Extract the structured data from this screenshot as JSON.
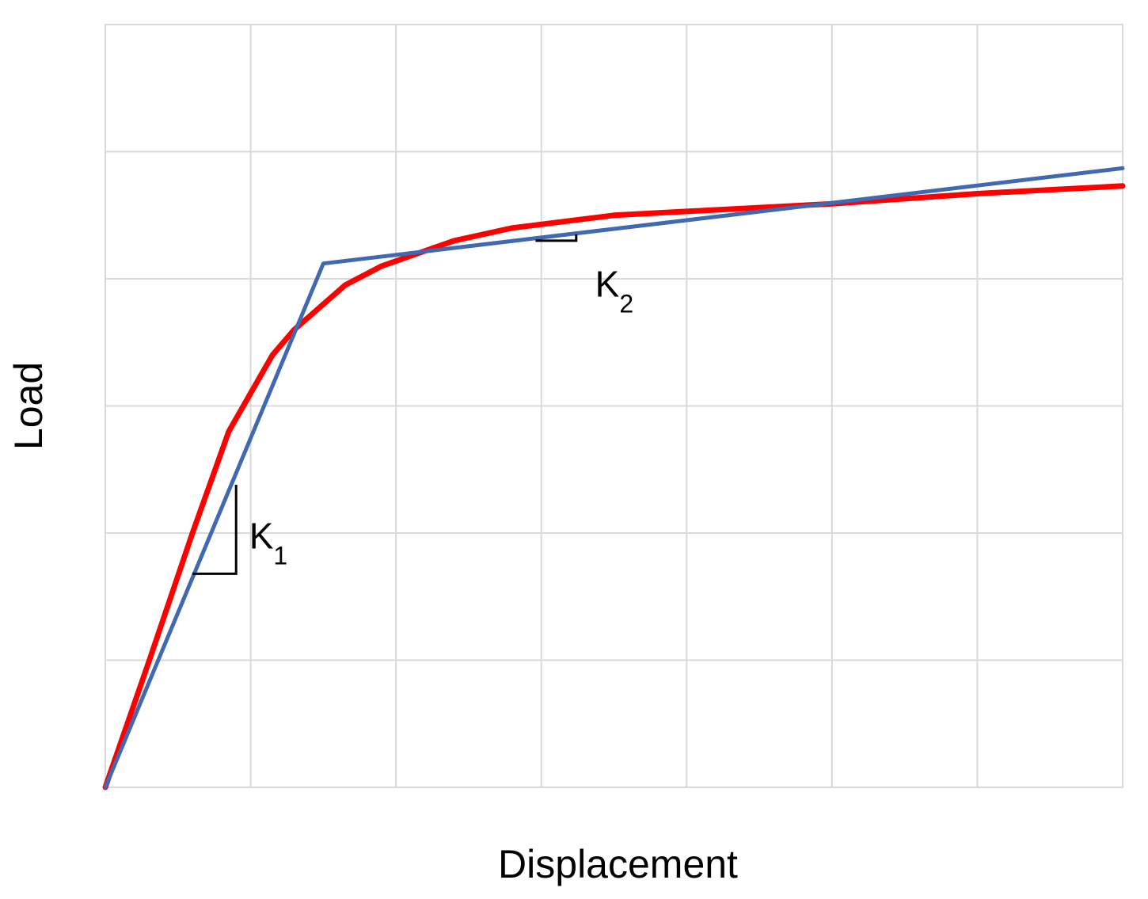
{
  "chart_data": {
    "type": "line",
    "xlabel": "Displacement",
    "ylabel": "Load",
    "xlim": [
      0,
      7
    ],
    "ylim": [
      0,
      6
    ],
    "x_grid_step": 1,
    "y_grid_step": 1,
    "grid": true,
    "legend": "none",
    "series": [
      {
        "color": "#ff0000",
        "points": [
          [
            0,
            0
          ],
          [
            0.3,
            0.99
          ],
          [
            0.6,
            2.0
          ],
          [
            0.85,
            2.8
          ],
          [
            1.0,
            3.1
          ],
          [
            1.15,
            3.4
          ],
          [
            1.3,
            3.6
          ],
          [
            1.45,
            3.75
          ],
          [
            1.65,
            3.95
          ],
          [
            1.9,
            4.1
          ],
          [
            2.4,
            4.3
          ],
          [
            2.8,
            4.4
          ],
          [
            3.5,
            4.5
          ],
          [
            4.0,
            4.53
          ],
          [
            4.5,
            4.56
          ],
          [
            5.0,
            4.59
          ],
          [
            5.5,
            4.63
          ],
          [
            6.0,
            4.67
          ],
          [
            6.5,
            4.7
          ],
          [
            7.0,
            4.73
          ]
        ]
      },
      {
        "color": "#4169b1",
        "points": [
          [
            0,
            0
          ],
          [
            1.5,
            4.12
          ],
          [
            7.0,
            4.87
          ]
        ]
      }
    ],
    "annotations": [
      {
        "text": "K",
        "sub": "1",
        "x": 0.99,
        "y": 1.88
      },
      {
        "text": "K",
        "sub": "2",
        "x": 3.37,
        "y": 3.86
      }
    ],
    "slope_markers": [
      {
        "x0": 0.6,
        "x1": 0.9,
        "y": 1.68,
        "y_top": 2.38
      },
      {
        "x0": 2.96,
        "x1": 3.24,
        "y": 4.3,
        "y_top": 4.35
      }
    ]
  }
}
